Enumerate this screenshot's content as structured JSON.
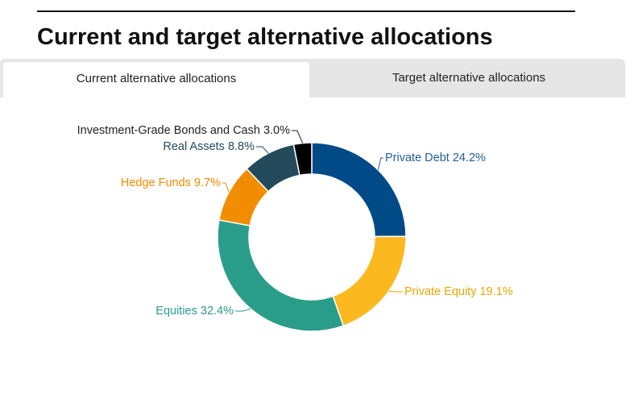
{
  "header": {
    "title": "Current and target alternative allocations"
  },
  "tabs": [
    "Current alternative allocations",
    "Target alternative allocations"
  ],
  "chart_data": {
    "type": "donut",
    "categories": [
      "Private Debt",
      "Private Equity",
      "Equities",
      "Hedge Funds",
      "Real Assets",
      "Investment-Grade Bonds and Cash"
    ],
    "values": [
      24.2,
      19.1,
      32.4,
      9.7,
      8.8,
      3.0
    ],
    "value_labels": [
      "24.2%",
      "19.1%",
      "32.4%",
      "9.7%",
      "8.8%",
      "3.0%"
    ],
    "colors": [
      "#004a87",
      "#fbb91f",
      "#2a9d8a",
      "#f28c00",
      "#234b5b",
      "#000000"
    ],
    "label_colors": [
      "#1f5f96",
      "#e9a800",
      "#2a9d8a",
      "#f28c00",
      "#234b5b",
      "#222222"
    ]
  }
}
